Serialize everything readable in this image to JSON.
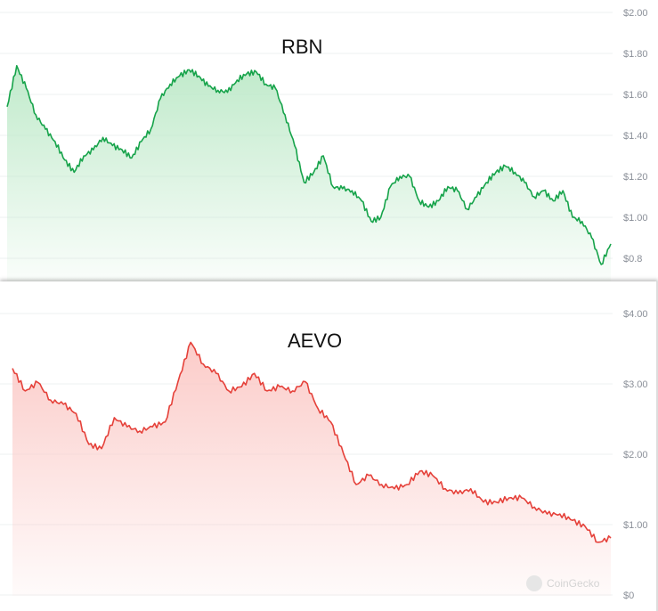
{
  "chart_data": [
    {
      "type": "area",
      "title": "RBN",
      "color": "#16a34a",
      "fill": "#bde9c8",
      "ylim": [
        0.7,
        2.0
      ],
      "y_ticks": [
        {
          "v": 2.0,
          "label": "$2.00"
        },
        {
          "v": 1.8,
          "label": "$1.80"
        },
        {
          "v": 1.6,
          "label": "$1.60"
        },
        {
          "v": 1.4,
          "label": "$1.40"
        },
        {
          "v": 1.2,
          "label": "$1.20"
        },
        {
          "v": 1.0,
          "label": "$1.00"
        },
        {
          "v": 0.8,
          "label": "$0.8"
        }
      ],
      "grid": true,
      "values": [
        1.54,
        1.74,
        1.63,
        1.5,
        1.43,
        1.37,
        1.28,
        1.22,
        1.3,
        1.33,
        1.39,
        1.35,
        1.33,
        1.29,
        1.37,
        1.43,
        1.58,
        1.65,
        1.69,
        1.72,
        1.69,
        1.64,
        1.62,
        1.61,
        1.67,
        1.7,
        1.71,
        1.65,
        1.63,
        1.5,
        1.35,
        1.17,
        1.22,
        1.3,
        1.15,
        1.14,
        1.13,
        1.08,
        0.98,
        1.0,
        1.15,
        1.2,
        1.2,
        1.08,
        1.05,
        1.08,
        1.15,
        1.13,
        1.04,
        1.1,
        1.17,
        1.22,
        1.25,
        1.22,
        1.17,
        1.1,
        1.13,
        1.08,
        1.13,
        1.0,
        0.98,
        0.9,
        0.77,
        0.87
      ]
    },
    {
      "type": "area",
      "title": "AEVO",
      "color": "#e5413a",
      "fill": "#fbc9c6",
      "ylim": [
        0,
        4.0
      ],
      "y_ticks": [
        {
          "v": 4,
          "label": "$4.00"
        },
        {
          "v": 3,
          "label": "$3.00"
        },
        {
          "v": 2,
          "label": "$2.00"
        },
        {
          "v": 1,
          "label": "$1.00"
        },
        {
          "v": 0,
          "label": "$0"
        }
      ],
      "grid": true,
      "watermark": "CoinGecko",
      "values": [
        3.22,
        2.9,
        3.02,
        2.77,
        2.71,
        2.58,
        2.14,
        2.08,
        2.52,
        2.39,
        2.33,
        2.39,
        2.46,
        3.03,
        3.59,
        3.28,
        3.15,
        2.9,
        2.96,
        3.15,
        2.9,
        2.96,
        2.9,
        3.03,
        2.65,
        2.46,
        2.01,
        1.57,
        1.7,
        1.57,
        1.51,
        1.57,
        1.76,
        1.7,
        1.51,
        1.44,
        1.51,
        1.32,
        1.32,
        1.38,
        1.38,
        1.25,
        1.15,
        1.15,
        1.06,
        0.97,
        0.75,
        0.81
      ]
    }
  ]
}
